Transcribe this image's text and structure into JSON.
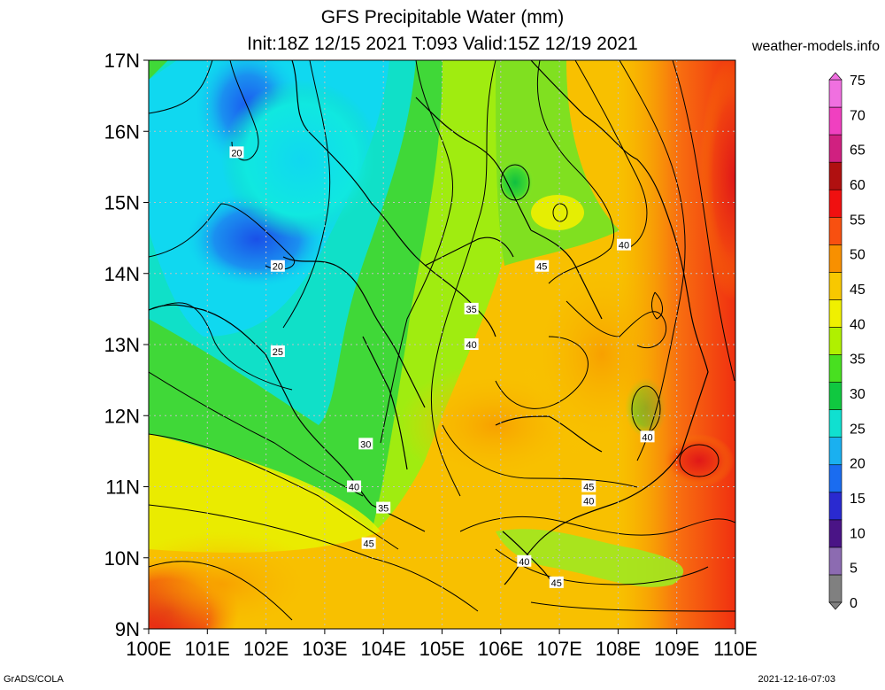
{
  "title_line1": "GFS Precipitable Water (mm)",
  "title_line2": "Init:18Z 12/15 2021 T:093 Valid:15Z 12/19 2021",
  "site": "weather-models.info",
  "footer_left": "GrADS/COLA",
  "footer_right": "2021-12-16-07:03",
  "map": {
    "lon_range": [
      100,
      110
    ],
    "lat_range": [
      9,
      17
    ],
    "lat_ticks": [
      "9N",
      "10N",
      "11N",
      "12N",
      "13N",
      "14N",
      "15N",
      "16N",
      "17N"
    ],
    "lon_ticks": [
      "100E",
      "101E",
      "102E",
      "103E",
      "104E",
      "105E",
      "106E",
      "107E",
      "108E",
      "109E",
      "110E"
    ],
    "contour_labels": [
      {
        "text": "20",
        "lon": 101.5,
        "lat": 15.7
      },
      {
        "text": "20",
        "lon": 102.2,
        "lat": 14.1
      },
      {
        "text": "25",
        "lon": 102.2,
        "lat": 12.9
      },
      {
        "text": "30",
        "lon": 103.7,
        "lat": 11.6
      },
      {
        "text": "35",
        "lon": 105.5,
        "lat": 13.5
      },
      {
        "text": "40",
        "lon": 105.5,
        "lat": 13.0
      },
      {
        "text": "40",
        "lon": 103.5,
        "lat": 11.0
      },
      {
        "text": "35",
        "lon": 104.0,
        "lat": 10.7
      },
      {
        "text": "45",
        "lon": 103.75,
        "lat": 10.2
      },
      {
        "text": "45",
        "lon": 106.7,
        "lat": 14.1
      },
      {
        "text": "40",
        "lon": 108.1,
        "lat": 14.4
      },
      {
        "text": "40",
        "lon": 108.5,
        "lat": 11.7
      },
      {
        "text": "45",
        "lon": 107.5,
        "lat": 11.0
      },
      {
        "text": "40",
        "lon": 107.5,
        "lat": 10.8
      },
      {
        "text": "40",
        "lon": 106.4,
        "lat": 9.95
      },
      {
        "text": "45",
        "lon": 106.95,
        "lat": 9.65
      }
    ]
  },
  "colorbar": {
    "labels": [
      "0",
      "5",
      "10",
      "15",
      "20",
      "25",
      "30",
      "35",
      "40",
      "45",
      "50",
      "55",
      "60",
      "65",
      "70",
      "75"
    ],
    "colors": [
      "#808080",
      "#8c6bb1",
      "#4a1486",
      "#2a2ad0",
      "#1a6cf0",
      "#1ab0f0",
      "#10e0d0",
      "#10c840",
      "#48e020",
      "#b0f000",
      "#f0f000",
      "#f8c800",
      "#f89000",
      "#f85010",
      "#f01010",
      "#b01010",
      "#d02080",
      "#f040c0",
      "#f070e0"
    ]
  }
}
